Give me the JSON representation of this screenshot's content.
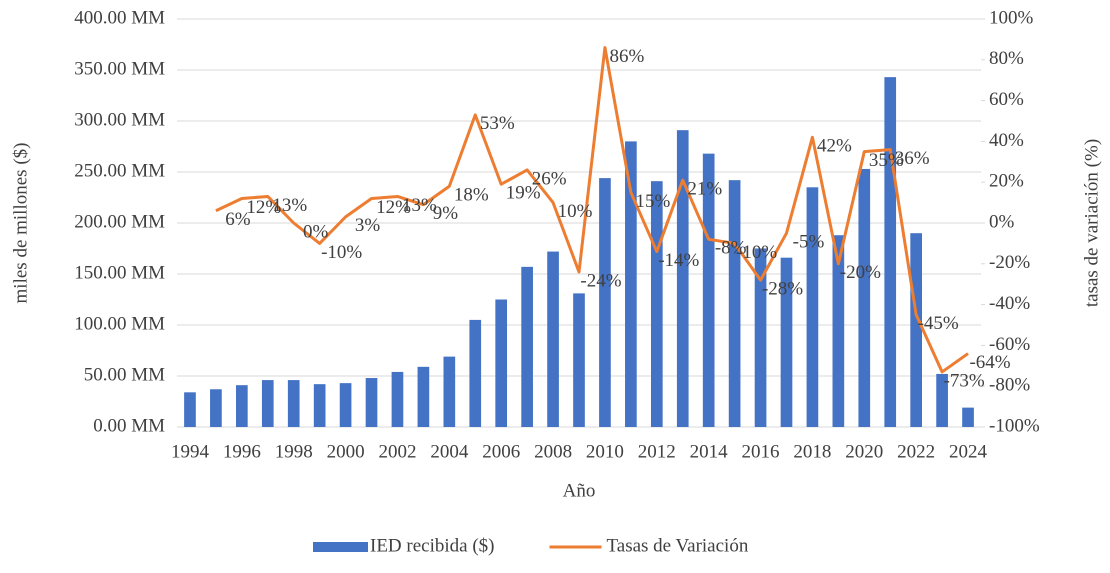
{
  "chart_data": {
    "type": "bar",
    "x_label": "Año",
    "y_label": "miles de millones ($)",
    "y2_label": "tasas de variación (%)",
    "categories": [
      "1994",
      null,
      "1996",
      null,
      "1998",
      null,
      "2000",
      null,
      "2002",
      null,
      "2004",
      null,
      "2006",
      null,
      "2008",
      null,
      "2010",
      null,
      "2012",
      null,
      "2014",
      null,
      "2016",
      null,
      "2018",
      null,
      "2020",
      null,
      "2022",
      null,
      "2024"
    ],
    "series": [
      {
        "name": "IED recibida ($)",
        "type": "bar",
        "color": "#4472c4",
        "axis": "y",
        "values": [
          34,
          37,
          41,
          46,
          46,
          42,
          43,
          48,
          54,
          59,
          69,
          105,
          125,
          157,
          172,
          131,
          244,
          280,
          241,
          291,
          268,
          242,
          175,
          166,
          235,
          188,
          253,
          343,
          190,
          52,
          19
        ]
      },
      {
        "name": "Tasas de Variación",
        "type": "line",
        "color": "#ed7d31",
        "axis": "y2",
        "values": [
          null,
          6,
          12,
          13,
          0,
          -10,
          3,
          12,
          13,
          9,
          18,
          53,
          19,
          26,
          10,
          -24,
          86,
          15,
          -14,
          21,
          -8,
          -10,
          -28,
          -5,
          42,
          -20,
          35,
          36,
          -45,
          -73,
          -64
        ],
        "value_labels": [
          null,
          "6%",
          "12%",
          "13%",
          "0%",
          "-10%",
          "3%",
          "12%",
          "13%",
          "9%",
          "18%",
          "53%",
          "19%",
          "26%",
          "10%",
          "-24%",
          "86%",
          "15%",
          "-14%",
          "21%",
          "-8%",
          "-10%",
          "-28%",
          "-5%",
          "42%",
          "-20%",
          "35%",
          "36%",
          "-45%",
          "-73%",
          "-64%"
        ]
      }
    ],
    "ylim": [
      0,
      400
    ],
    "yticks": [
      {
        "value": 0,
        "label": "0.00 MM"
      },
      {
        "value": 50,
        "label": "50.00 MM"
      },
      {
        "value": 100,
        "label": "100.00 MM"
      },
      {
        "value": 150,
        "label": "150.00 MM"
      },
      {
        "value": 200,
        "label": "200.00 MM"
      },
      {
        "value": 250,
        "label": "250.00 MM"
      },
      {
        "value": 300,
        "label": "300.00 MM"
      },
      {
        "value": 350,
        "label": "350.00 MM"
      },
      {
        "value": 400,
        "label": "400.00 MM"
      }
    ],
    "y2lim": [
      -100,
      100
    ],
    "y2ticks": [
      {
        "value": -100,
        "label": "-100%"
      },
      {
        "value": -80,
        "label": "-80%"
      },
      {
        "value": -60,
        "label": "-60%"
      },
      {
        "value": -40,
        "label": "-40%"
      },
      {
        "value": -20,
        "label": "-20%"
      },
      {
        "value": 0,
        "label": "0%"
      },
      {
        "value": 20,
        "label": "20%"
      },
      {
        "value": 40,
        "label": "40%"
      },
      {
        "value": 60,
        "label": "60%"
      },
      {
        "value": 80,
        "label": "80%"
      },
      {
        "value": 100,
        "label": "100%"
      }
    ],
    "grid": true,
    "legend": "bottom"
  }
}
